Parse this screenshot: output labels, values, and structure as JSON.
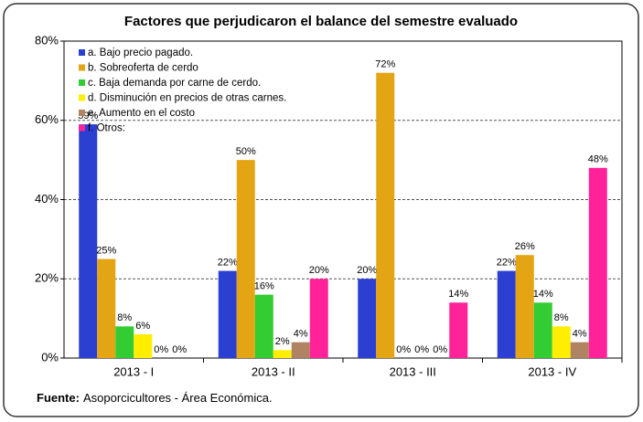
{
  "chart_data": {
    "type": "bar",
    "title": "Factores que perjudicaron el balance del semestre evaluado",
    "categories": [
      "2013 - I",
      "2013 - II",
      "2013 - III",
      "2013 - IV"
    ],
    "series": [
      {
        "name": "a. Bajo precio pagado.",
        "color": "#2b3fd0",
        "values": [
          59,
          22,
          20,
          22
        ],
        "value_labels": [
          "59%",
          "22%",
          "20%",
          "22%"
        ]
      },
      {
        "name": "b. Sobreoferta de cerdo",
        "color": "#e3a514",
        "values": [
          25,
          50,
          72,
          26
        ],
        "value_labels": [
          "25%",
          "50%",
          "72%",
          "26%"
        ]
      },
      {
        "name": "c. Baja demanda por carne de cerdo.",
        "color": "#33cc33",
        "values": [
          8,
          16,
          0,
          14
        ],
        "value_labels": [
          "8%",
          "16%",
          "0%",
          "14%"
        ]
      },
      {
        "name": "d. Disminución en precios de otras carnes.",
        "color": "#ffee00",
        "values": [
          6,
          2,
          0,
          8
        ],
        "value_labels": [
          "6%",
          "2%",
          "0%",
          "8%"
        ]
      },
      {
        "name": "e. Aumento en el costo",
        "color": "#b08462",
        "values": [
          0,
          4,
          0,
          4
        ],
        "value_labels": [
          "0%",
          "4%",
          "0%",
          "4%"
        ]
      },
      {
        "name": "f. Otros:",
        "color": "#ff2299",
        "values": [
          0,
          20,
          14,
          48
        ],
        "value_labels": [
          "0%",
          "20%",
          "14%",
          "48%"
        ]
      }
    ],
    "ylim": [
      0,
      80
    ],
    "yticks": [
      {
        "value": 0,
        "label": "0%"
      },
      {
        "value": 20,
        "label": "20%"
      },
      {
        "value": 40,
        "label": "40%"
      },
      {
        "value": 60,
        "label": "60%"
      },
      {
        "value": 80,
        "label": "80%"
      }
    ],
    "grid": true,
    "legend": "top-left",
    "source_label": "Fuente:",
    "source": "Asoporcicultores - Área Económica."
  }
}
